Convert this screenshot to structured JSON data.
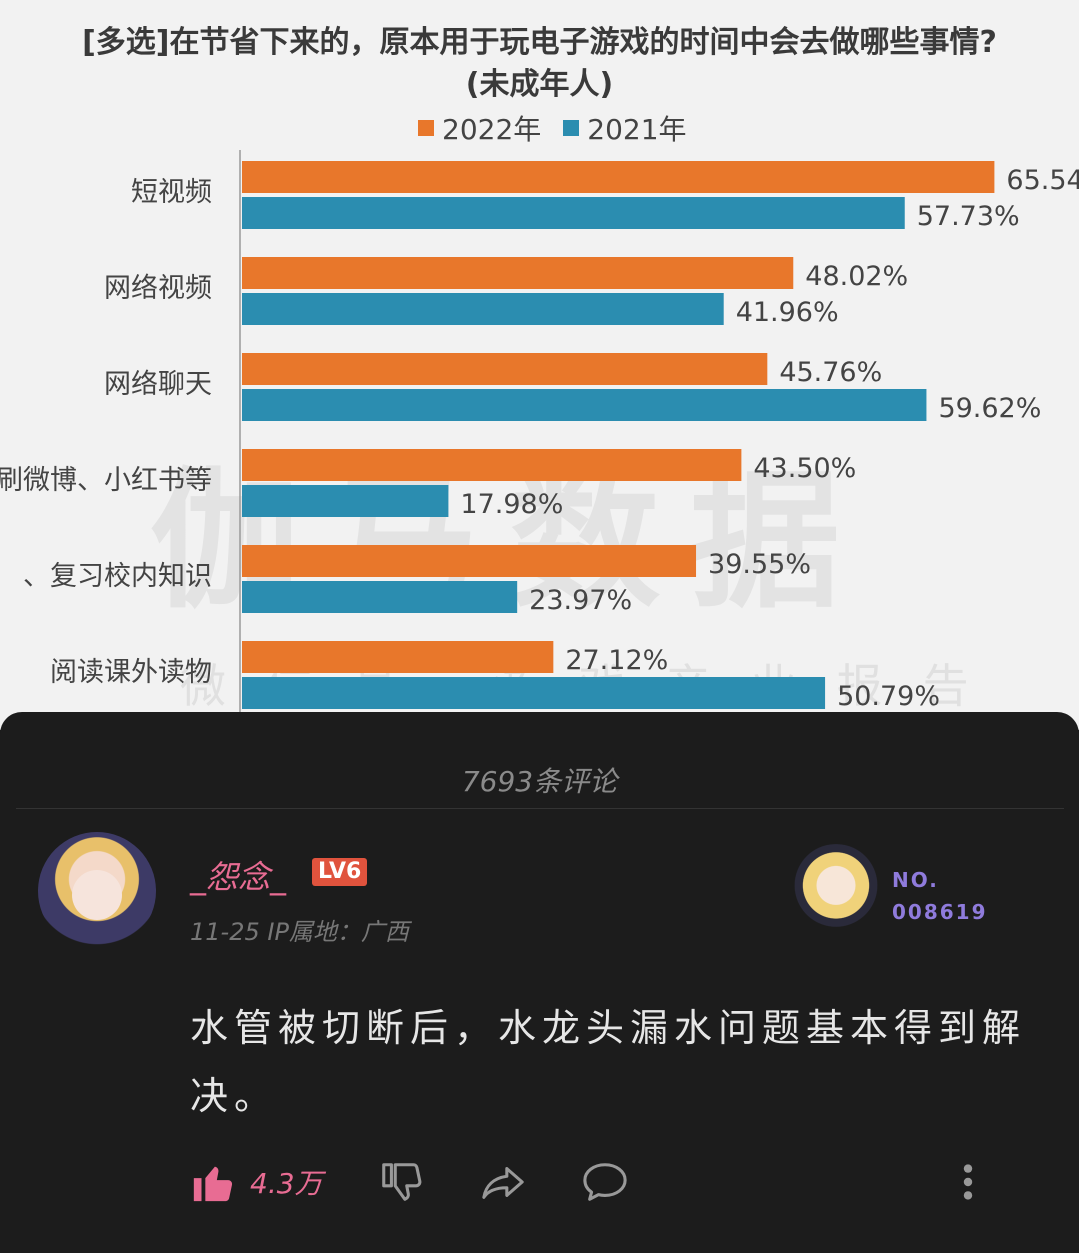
{
  "chart_data": {
    "type": "bar",
    "orientation": "horizontal",
    "title": "[多选]在节省下来的，原本用于玩电子游戏的时间中会去做哪些事情?",
    "subtitle": "(未成年人)",
    "categories": [
      "短视频",
      "网络视频",
      "网络聊天",
      "刷微博、小红书等",
      "学习、复习校内知识",
      "阅读课外读物"
    ],
    "category_labels_visible": [
      "短视频",
      "网络视频",
      "网络聊天",
      "刷微博、小红书等",
      "、复习校内知识",
      "阅读课外读物"
    ],
    "series": [
      {
        "name": "2022年",
        "color": "#e8772b",
        "values": [
          65.54,
          48.02,
          45.76,
          43.5,
          39.55,
          27.12
        ],
        "labels": [
          "65.54",
          "48.02%",
          "45.76%",
          "43.50%",
          "39.55%",
          "27.12%"
        ]
      },
      {
        "name": "2021年",
        "color": "#2b8db0",
        "values": [
          57.73,
          41.96,
          59.62,
          17.98,
          23.97,
          50.79
        ],
        "labels": [
          "57.73%",
          "41.96%",
          "59.62%",
          "17.98%",
          "23.97%",
          "50.79%"
        ]
      }
    ],
    "legend": "top",
    "grid": false
  },
  "watermark": {
    "main": "伽马数据",
    "sub": "微信号 游戏产业报告"
  },
  "comments": {
    "count_label": "7693条评论"
  },
  "comment": {
    "username": "_怨念_",
    "level": "LV6",
    "meta": "11-25  IP属地：广西",
    "fan_number_label": "NO.",
    "fan_number": "008619",
    "text": "水管被切断后，水龙头漏水问题基本得到解决。",
    "like_count": "4.3万"
  },
  "colors": {
    "accent_pink": "#e86c93",
    "level_badge": "#e0533d",
    "fan_purple": "#8f7bdc"
  }
}
